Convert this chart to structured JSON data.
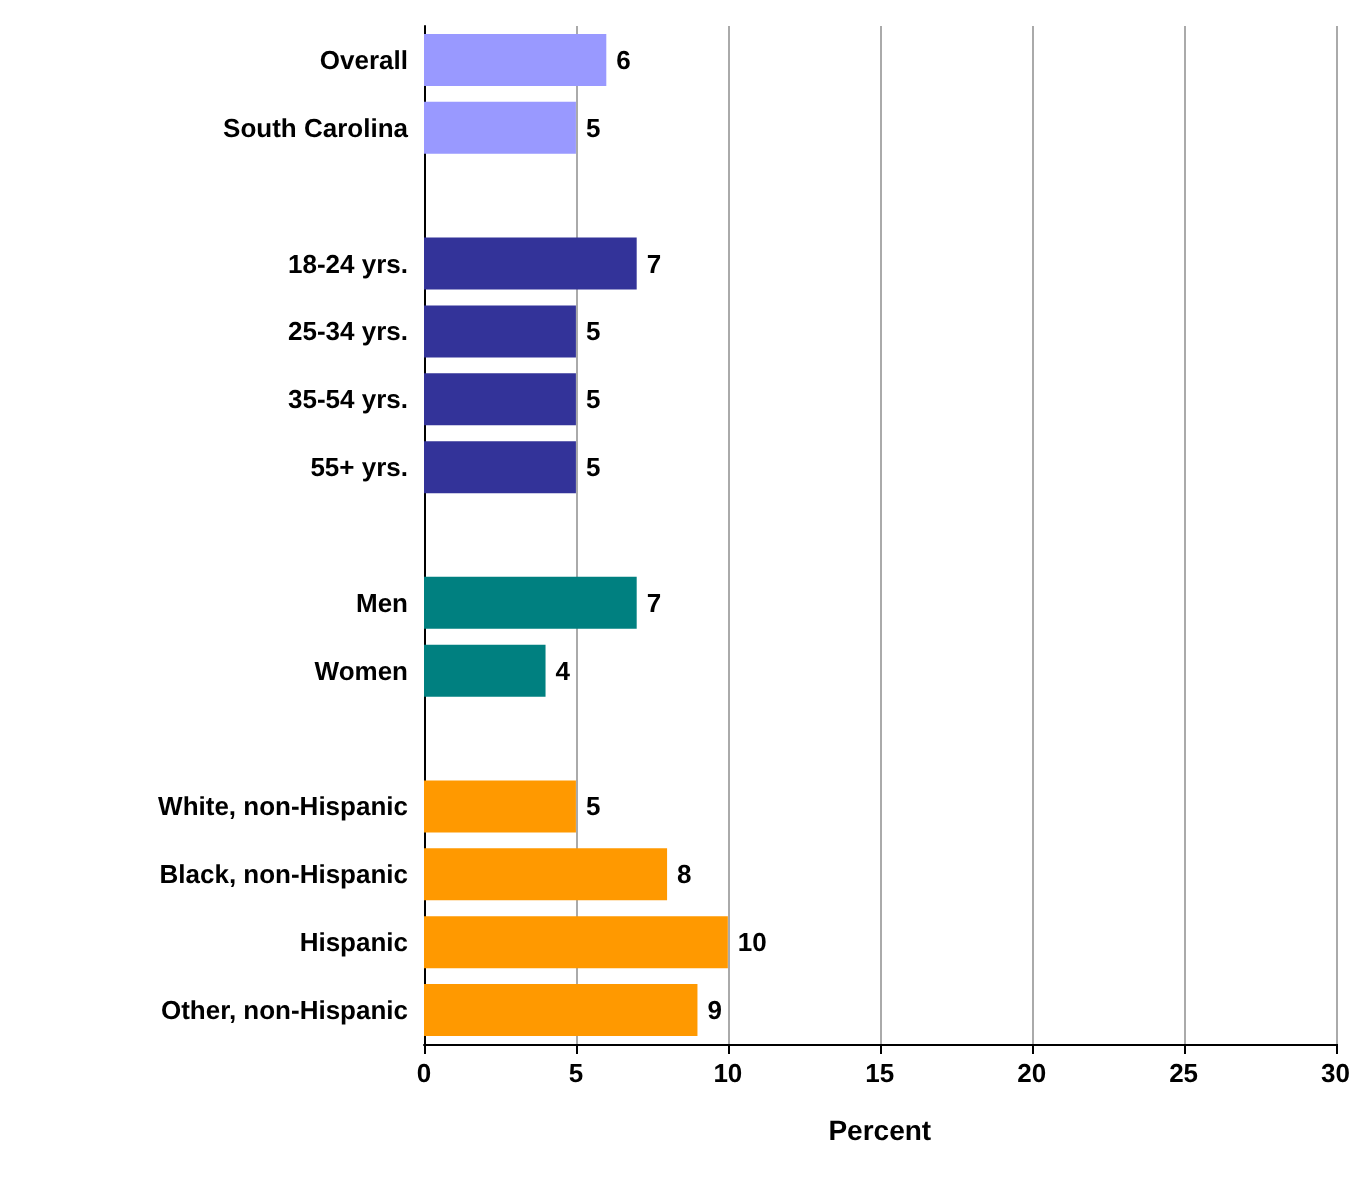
{
  "chart_data": {
    "type": "bar",
    "orientation": "horizontal",
    "xlabel": "Percent",
    "categories": [
      "Overall",
      "South Carolina",
      null,
      "18-24 yrs.",
      "25-34 yrs.",
      "35-54 yrs.",
      "55+ yrs.",
      null,
      "Men",
      "Women",
      null,
      "White, non-Hispanic",
      "Black, non-Hispanic",
      "Hispanic",
      "Other, non-Hispanic"
    ],
    "values": [
      6,
      5,
      null,
      7,
      5,
      5,
      5,
      null,
      7,
      4,
      null,
      5,
      8,
      10,
      9
    ],
    "colors": [
      "#9999ff",
      "#9999ff",
      null,
      "#333399",
      "#333399",
      "#333399",
      "#333399",
      null,
      "#008080",
      "#008080",
      null,
      "#ff9900",
      "#ff9900",
      "#ff9900",
      "#ff9900"
    ],
    "xlim": [
      0,
      30
    ],
    "xticks": [
      0,
      5,
      10,
      15,
      20,
      25,
      30
    ],
    "grid": "x",
    "data_labels": true
  }
}
